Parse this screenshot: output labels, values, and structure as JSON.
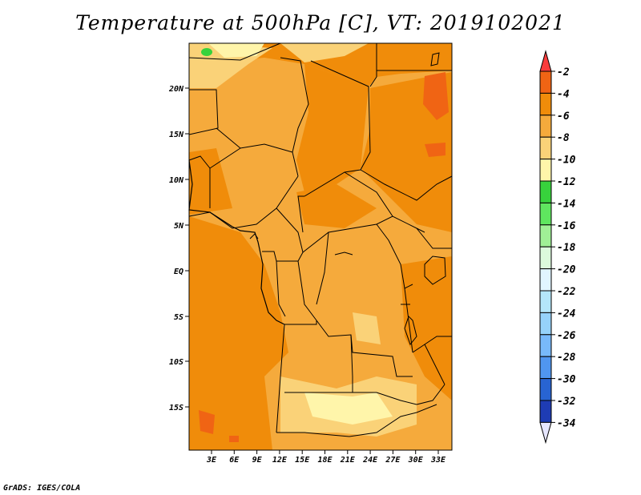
{
  "title": "Temperature at 500hPa [C], VT: 2019102021",
  "credit": "GrADS: IGES/COLA",
  "map": {
    "lat_labels": [
      "20N",
      "15N",
      "10N",
      "5N",
      "EQ",
      "5S",
      "10S",
      "15S"
    ],
    "lon_labels": [
      "3E",
      "6E",
      "9E",
      "12E",
      "15E",
      "18E",
      "21E",
      "24E",
      "27E",
      "30E",
      "33E"
    ]
  },
  "colorbar": {
    "labels": [
      "-2",
      "-4",
      "-6",
      "-8",
      "-10",
      "-12",
      "-14",
      "-16",
      "-18",
      "-20",
      "-22",
      "-24",
      "-26",
      "-28",
      "-30",
      "-32",
      "-34"
    ],
    "colors": [
      "#fa3c3c",
      "#f06414",
      "#f08c0a",
      "#f5aa3c",
      "#fad278",
      "#fff5aa",
      "#37d23c",
      "#5fe65f",
      "#a0f096",
      "#dcfadc",
      "#e1f5ff",
      "#b4e6fa",
      "#96d2fa",
      "#78b9fa",
      "#5096f0",
      "#2864d2",
      "#1e3cb4",
      "#0a1478"
    ],
    "top_color": "#fa3c3c",
    "bottom_color": "#e6e6ff"
  },
  "field_colors": {
    "dominant": "#f5aa3c",
    "warm": "#f08c0a",
    "hot": "#f06414",
    "cool": "#fad278",
    "cold": "#fff5aa",
    "green": "#37d23c"
  }
}
